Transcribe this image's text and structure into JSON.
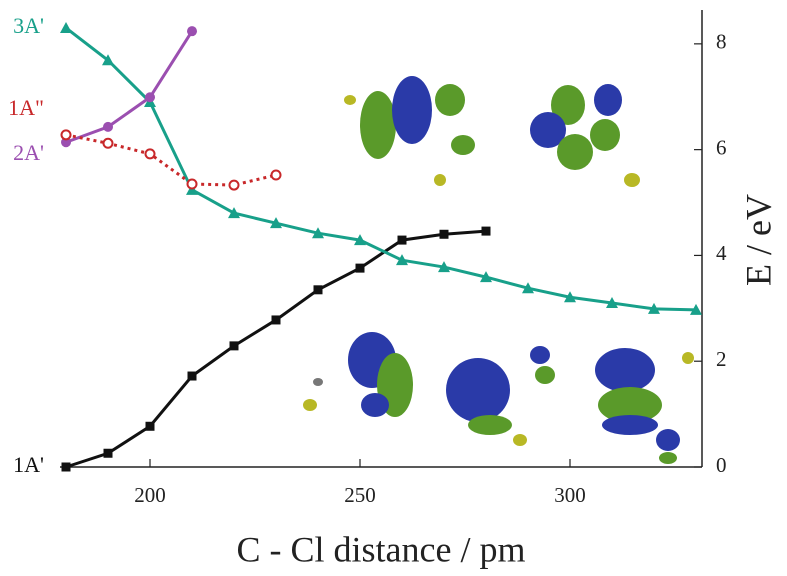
{
  "chart_data": {
    "type": "line",
    "x_label": "C - Cl distance / pm",
    "y_label": "E / eV",
    "xlim": [
      178.57,
      331.43
    ],
    "ylim": [
      0,
      8.64
    ],
    "xticks": [
      200,
      250,
      300
    ],
    "yticks": [
      0,
      2,
      4,
      6,
      8
    ],
    "series": [
      {
        "name": "1A'",
        "color": "#111111",
        "marker": "square",
        "linestyle": "solid",
        "x": [
          180,
          190,
          200,
          210,
          220,
          230,
          240,
          250,
          260,
          270,
          280
        ],
        "values": [
          0,
          0.26,
          0.77,
          1.72,
          2.29,
          2.78,
          3.35,
          3.76,
          4.29,
          4.4,
          4.46
        ]
      },
      {
        "name": "3A'",
        "color": "#18a08a",
        "marker": "triangle",
        "linestyle": "solid",
        "x": [
          180,
          190,
          200,
          210,
          220,
          230,
          240,
          250,
          260,
          270,
          280,
          290,
          300,
          310,
          320,
          330
        ],
        "values": [
          8.3,
          7.69,
          6.9,
          5.24,
          4.8,
          4.61,
          4.42,
          4.29,
          3.91,
          3.78,
          3.59,
          3.38,
          3.21,
          3.1,
          2.99,
          2.97
        ]
      },
      {
        "name": "2A'",
        "color": "#9b4fb0",
        "marker": "circle",
        "linestyle": "solid",
        "x": [
          180,
          190,
          200,
          210
        ],
        "values": [
          6.14,
          6.43,
          6.99,
          8.24
        ]
      },
      {
        "name": "1A\"",
        "color": "#c8282a",
        "marker": "open-circle",
        "linestyle": "dotted",
        "x": [
          180,
          190,
          200,
          210,
          220,
          230
        ],
        "values": [
          6.28,
          6.12,
          5.92,
          5.35,
          5.33,
          5.52
        ]
      }
    ]
  }
}
